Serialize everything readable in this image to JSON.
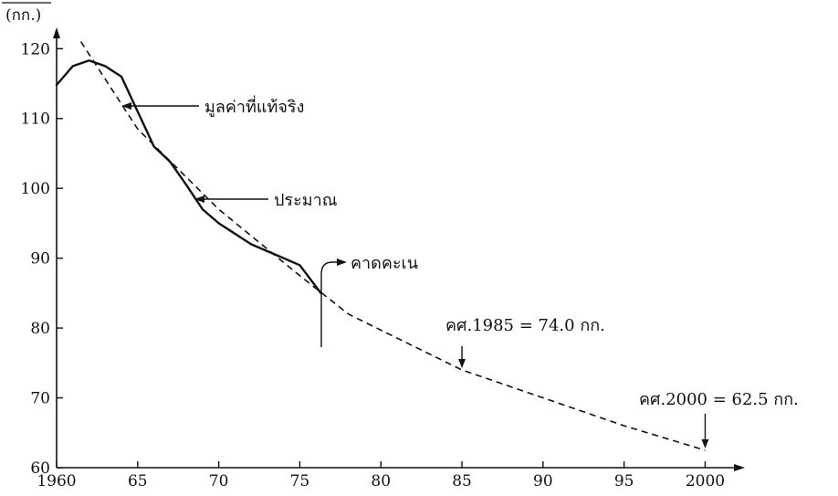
{
  "chart_data": {
    "type": "line",
    "ylabel": "(กก.)",
    "xlabel": "",
    "xlim": [
      1960,
      2002
    ],
    "ylim": [
      60,
      122
    ],
    "x_ticks": [
      1960,
      1965,
      1970,
      1975,
      1980,
      1985,
      1990,
      1995,
      2000
    ],
    "x_tick_labels": [
      "1960",
      "65",
      "70",
      "75",
      "80",
      "85",
      "90",
      "95",
      "2000"
    ],
    "y_ticks": [
      60,
      70,
      80,
      90,
      100,
      110,
      120
    ],
    "y_tick_labels": [
      "60",
      "70",
      "80",
      "90",
      "100",
      "110",
      "120"
    ],
    "grid": false,
    "series": [
      {
        "name": "มูลค่าที่แท้จริง",
        "style": "solid",
        "x": [
          1960,
          1961,
          1962,
          1963,
          1964,
          1965,
          1966,
          1967,
          1968,
          1969,
          1970,
          1971,
          1972,
          1973,
          1974,
          1975,
          1976.3
        ],
        "y": [
          114.8,
          117.5,
          118.3,
          117.5,
          116.0,
          111.0,
          106.0,
          103.8,
          100.5,
          97.0,
          95.0,
          93.5,
          92.0,
          91.0,
          90.0,
          89.0,
          85.0
        ]
      },
      {
        "name": "ประมาณ",
        "style": "dashed",
        "x": [
          1961.5,
          1965,
          1970,
          1975,
          1978,
          1980,
          1985,
          1990,
          1995,
          2000
        ],
        "y": [
          121.0,
          108.5,
          97.0,
          87.5,
          82.0,
          79.7,
          74.0,
          70.0,
          66.0,
          62.5
        ]
      }
    ],
    "annotations": {
      "actual": "มูลค่าที่แท้จริง",
      "estimate": "ประมาณ",
      "forecast": "คาดคะเน",
      "point_1985": "คศ.1985 = 74.0 กก.",
      "point_2000": "คศ.2000 = 62.5 กก."
    },
    "annotation_points": {
      "point_1985": [
        1985,
        74.0
      ],
      "point_2000": [
        2000,
        62.5
      ]
    }
  }
}
